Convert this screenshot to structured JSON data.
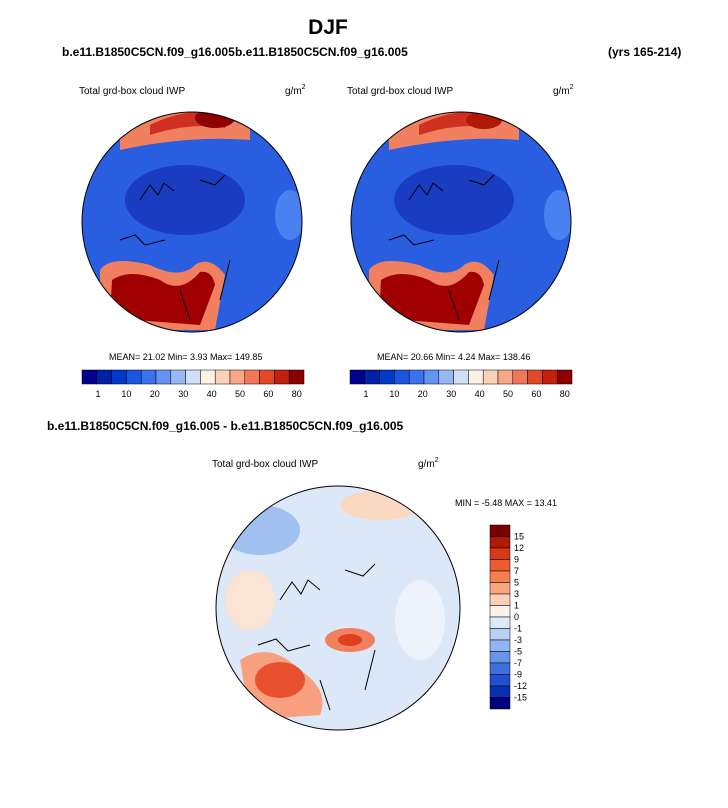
{
  "title": "DJF",
  "header": {
    "left_case": "b.e11.B1850C5CN.f09_g16.005",
    "right_case": "b.e11.B1850C5CN.f09_g16.005",
    "years": "(yrs 165-214)"
  },
  "panels": [
    {
      "label": "Total grd-box cloud IWP",
      "units": "g/m",
      "units_power": "2",
      "stats": "MEAN=  21.02  Min=   3.93  Max= 149.85",
      "colorbar": [
        1,
        10,
        20,
        30,
        40,
        50,
        60,
        80
      ]
    },
    {
      "label": "Total grd-box cloud IWP",
      "units": "g/m",
      "units_power": "2",
      "stats": "MEAN=  20.66  Min=   4.24  Max= 138.46",
      "colorbar": [
        1,
        10,
        20,
        30,
        40,
        50,
        60,
        80
      ]
    }
  ],
  "difference": {
    "heading": "b.e11.B1850C5CN.f09_g16.005 - b.e11.B1850C5CN.f09_g16.005",
    "label": "Total grd-box cloud IWP",
    "units": "g/m",
    "units_power": "2",
    "stats": "MIN =  -5.48 MAX =  13.41",
    "colorbar": [
      15,
      12,
      9,
      7,
      5,
      3,
      1,
      0,
      -1,
      -3,
      -5,
      -7,
      -9,
      -12,
      -15
    ]
  }
}
